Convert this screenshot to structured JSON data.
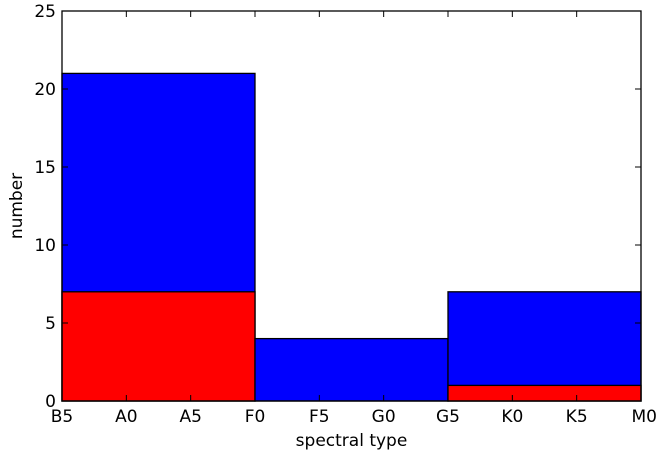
{
  "chart_data": {
    "type": "bar",
    "stacked_overlay": true,
    "xlabel": "spectral type",
    "ylabel": "number",
    "ylim": [
      0,
      25
    ],
    "y_ticks": [
      0,
      5,
      10,
      15,
      20,
      25
    ],
    "x_ticks": [
      "B5",
      "A0",
      "A5",
      "F0",
      "F5",
      "G0",
      "G5",
      "K0",
      "K5",
      "M0"
    ],
    "bins": [
      {
        "range": [
          "B5",
          "F0"
        ],
        "total": 21,
        "subset": 7
      },
      {
        "range": [
          "F0",
          "G5"
        ],
        "total": 4,
        "subset": 0
      },
      {
        "range": [
          "G5",
          "M0"
        ],
        "total": 7,
        "subset": 1
      }
    ],
    "series": [
      {
        "key": "total",
        "color": "#0000ff"
      },
      {
        "key": "subset",
        "color": "#ff0000"
      }
    ],
    "grid": false
  }
}
